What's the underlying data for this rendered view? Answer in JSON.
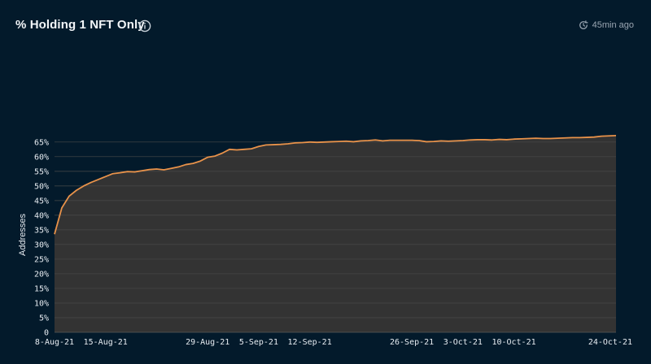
{
  "header": {
    "title": "% Holding 1 NFT Only",
    "updated": "45min ago",
    "info_icon": "info-circle-icon",
    "clock_icon": "clock-refresh-icon"
  },
  "colors": {
    "background": "#031a2b",
    "plot_area": "#333333",
    "line": "#e8924a",
    "grid": "#4a4a4a",
    "text": "#e7ecf1"
  },
  "chart_data": {
    "type": "area",
    "title": "% Holding 1 NFT Only",
    "xlabel": "",
    "ylabel": "Addresses",
    "ylim": [
      0,
      0.68
    ],
    "grid": true,
    "y_ticks": [
      0,
      0.05,
      0.1,
      0.15,
      0.2,
      0.25,
      0.3,
      0.35,
      0.4,
      0.45,
      0.5,
      0.55,
      0.6,
      0.65
    ],
    "y_tick_labels": [
      "0",
      "5%",
      "10%",
      "15%",
      "20%",
      "25%",
      "30%",
      "35%",
      "40%",
      "45%",
      "50%",
      "55%",
      "60%",
      "65%"
    ],
    "x_range": [
      "2021-08-08",
      "2021-10-24"
    ],
    "x_ticks": [
      "2021-08-08",
      "2021-08-15",
      "2021-08-29",
      "2021-09-05",
      "2021-09-12",
      "2021-09-26",
      "2021-10-03",
      "2021-10-10",
      "2021-10-24"
    ],
    "x_tick_labels": [
      "8-Aug-21",
      "15-Aug-21",
      "29-Aug-21",
      "5-Sep-21",
      "12-Sep-21",
      "26-Sep-21",
      "3-Oct-21",
      "10-Oct-21",
      "24-Oct-21"
    ],
    "series": [
      {
        "x": [
          "2021-08-08",
          "2021-08-09",
          "2021-08-10",
          "2021-08-11",
          "2021-08-12",
          "2021-08-13",
          "2021-08-14",
          "2021-08-15",
          "2021-08-16",
          "2021-08-17",
          "2021-08-18",
          "2021-08-19",
          "2021-08-20",
          "2021-08-21",
          "2021-08-22",
          "2021-08-23",
          "2021-08-24",
          "2021-08-25",
          "2021-08-26",
          "2021-08-27",
          "2021-08-28",
          "2021-08-29",
          "2021-08-30",
          "2021-08-31",
          "2021-09-01",
          "2021-09-02",
          "2021-09-03",
          "2021-09-04",
          "2021-09-05",
          "2021-09-06",
          "2021-09-07",
          "2021-09-08",
          "2021-09-09",
          "2021-09-10",
          "2021-09-11",
          "2021-09-12",
          "2021-09-13",
          "2021-09-14",
          "2021-09-15",
          "2021-09-16",
          "2021-09-17",
          "2021-09-18",
          "2021-09-19",
          "2021-09-20",
          "2021-09-21",
          "2021-09-22",
          "2021-09-23",
          "2021-09-24",
          "2021-09-25",
          "2021-09-26",
          "2021-09-27",
          "2021-09-28",
          "2021-09-29",
          "2021-09-30",
          "2021-10-01",
          "2021-10-02",
          "2021-10-03",
          "2021-10-04",
          "2021-10-05",
          "2021-10-06",
          "2021-10-07",
          "2021-10-08",
          "2021-10-09",
          "2021-10-10",
          "2021-10-11",
          "2021-10-12",
          "2021-10-13",
          "2021-10-14",
          "2021-10-15",
          "2021-10-16",
          "2021-10-17",
          "2021-10-18",
          "2021-10-19",
          "2021-10-20",
          "2021-10-21",
          "2021-10-22",
          "2021-10-23",
          "2021-10-24"
        ],
        "values": [
          0.335,
          0.425,
          0.465,
          0.485,
          0.5,
          0.512,
          0.522,
          0.532,
          0.542,
          0.545,
          0.549,
          0.548,
          0.552,
          0.556,
          0.558,
          0.555,
          0.56,
          0.565,
          0.573,
          0.577,
          0.585,
          0.598,
          0.602,
          0.612,
          0.625,
          0.623,
          0.625,
          0.627,
          0.635,
          0.64,
          0.641,
          0.642,
          0.644,
          0.647,
          0.648,
          0.65,
          0.649,
          0.65,
          0.651,
          0.652,
          0.653,
          0.651,
          0.654,
          0.655,
          0.657,
          0.654,
          0.656,
          0.656,
          0.656,
          0.656,
          0.655,
          0.651,
          0.652,
          0.654,
          0.653,
          0.654,
          0.655,
          0.657,
          0.658,
          0.658,
          0.657,
          0.659,
          0.658,
          0.66,
          0.661,
          0.662,
          0.663,
          0.662,
          0.662,
          0.663,
          0.664,
          0.665,
          0.665,
          0.666,
          0.667,
          0.67,
          0.671,
          0.672
        ]
      }
    ]
  }
}
